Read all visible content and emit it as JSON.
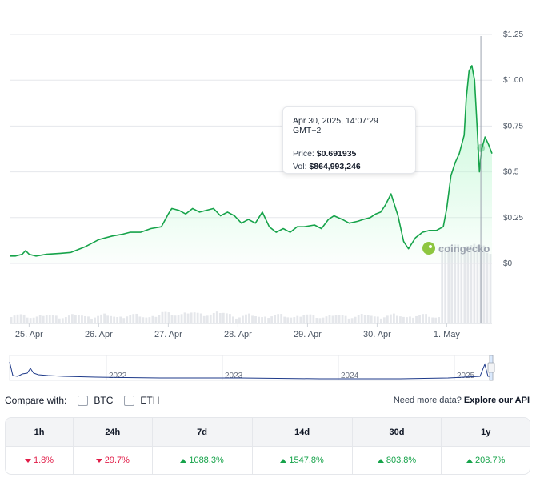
{
  "chart_data": {
    "type": "area",
    "currency": "$",
    "y_ticks": [
      "$1.25",
      "$1.00",
      "$0.75",
      "$0.5",
      "$0.25",
      "$0"
    ],
    "ylim": [
      0,
      1.25
    ],
    "x_ticks": [
      "25. Apr",
      "26. Apr",
      "27. Apr",
      "28. Apr",
      "29. Apr",
      "30. Apr",
      "1. May"
    ],
    "x_tick_positions": [
      0,
      1,
      2,
      3,
      4,
      5,
      6
    ],
    "x_range": [
      -0.28,
      6.65
    ],
    "series": [
      {
        "values": [
          [
            -0.28,
            0.04
          ],
          [
            -0.2,
            0.04
          ],
          [
            -0.1,
            0.05
          ],
          [
            -0.05,
            0.07
          ],
          [
            0.0,
            0.05
          ],
          [
            0.1,
            0.04
          ],
          [
            0.25,
            0.05
          ],
          [
            0.45,
            0.055
          ],
          [
            0.6,
            0.06
          ],
          [
            0.8,
            0.09
          ],
          [
            1.0,
            0.13
          ],
          [
            1.2,
            0.15
          ],
          [
            1.35,
            0.16
          ],
          [
            1.45,
            0.17
          ],
          [
            1.6,
            0.17
          ],
          [
            1.75,
            0.19
          ],
          [
            1.9,
            0.2
          ],
          [
            2.0,
            0.27
          ],
          [
            2.05,
            0.3
          ],
          [
            2.15,
            0.29
          ],
          [
            2.25,
            0.27
          ],
          [
            2.35,
            0.3
          ],
          [
            2.45,
            0.28
          ],
          [
            2.55,
            0.29
          ],
          [
            2.65,
            0.3
          ],
          [
            2.75,
            0.26
          ],
          [
            2.85,
            0.28
          ],
          [
            2.95,
            0.26
          ],
          [
            3.05,
            0.22
          ],
          [
            3.15,
            0.24
          ],
          [
            3.25,
            0.22
          ],
          [
            3.35,
            0.28
          ],
          [
            3.45,
            0.2
          ],
          [
            3.55,
            0.17
          ],
          [
            3.65,
            0.19
          ],
          [
            3.75,
            0.17
          ],
          [
            3.85,
            0.2
          ],
          [
            3.95,
            0.2
          ],
          [
            4.1,
            0.21
          ],
          [
            4.2,
            0.19
          ],
          [
            4.3,
            0.24
          ],
          [
            4.38,
            0.26
          ],
          [
            4.5,
            0.24
          ],
          [
            4.6,
            0.22
          ],
          [
            4.72,
            0.23
          ],
          [
            4.8,
            0.24
          ],
          [
            4.9,
            0.25
          ],
          [
            4.98,
            0.27
          ],
          [
            5.05,
            0.28
          ],
          [
            5.12,
            0.32
          ],
          [
            5.2,
            0.38
          ],
          [
            5.3,
            0.26
          ],
          [
            5.38,
            0.12
          ],
          [
            5.45,
            0.08
          ],
          [
            5.55,
            0.14
          ],
          [
            5.65,
            0.17
          ],
          [
            5.75,
            0.18
          ],
          [
            5.85,
            0.18
          ],
          [
            5.95,
            0.2
          ],
          [
            6.0,
            0.3
          ],
          [
            6.06,
            0.48
          ],
          [
            6.12,
            0.55
          ],
          [
            6.18,
            0.6
          ],
          [
            6.25,
            0.7
          ],
          [
            6.28,
            0.9
          ],
          [
            6.32,
            1.05
          ],
          [
            6.36,
            1.08
          ],
          [
            6.4,
            1.0
          ],
          [
            6.44,
            0.72
          ],
          [
            6.47,
            0.5
          ],
          [
            6.5,
            0.62
          ],
          [
            6.55,
            0.69
          ],
          [
            6.6,
            0.65
          ],
          [
            6.65,
            0.6
          ]
        ]
      }
    ],
    "volume_note": "relative daily volume bars (unlabeled)",
    "grid": true,
    "legend": "none",
    "crosshair_x": 6.49
  },
  "tooltip": {
    "timestamp": "Apr 30, 2025, 14:07:29 GMT+2",
    "price_label": "Price:",
    "price_value": "$0.691935",
    "vol_label": "Vol:",
    "vol_value": "$864,993,246"
  },
  "watermark": "coingecko",
  "navigator": {
    "years": [
      "2022",
      "2023",
      "2024",
      "2025"
    ]
  },
  "compare": {
    "label": "Compare with:",
    "options": [
      "BTC",
      "ETH"
    ]
  },
  "api_prompt": {
    "text": "Need more data?",
    "link": "Explore our API"
  },
  "performance": {
    "headers": [
      "1h",
      "24h",
      "7d",
      "14d",
      "30d",
      "1y"
    ],
    "values": [
      "1.8%",
      "29.7%",
      "1088.3%",
      "1547.8%",
      "803.8%",
      "208.7%"
    ],
    "direction": [
      "down",
      "down",
      "up",
      "up",
      "up",
      "up"
    ]
  },
  "colors": {
    "line": "#16a34a",
    "area_top": "#bbf7d0",
    "grid": "#e5e7eb",
    "negative": "#e11d48",
    "positive": "#16a34a"
  }
}
